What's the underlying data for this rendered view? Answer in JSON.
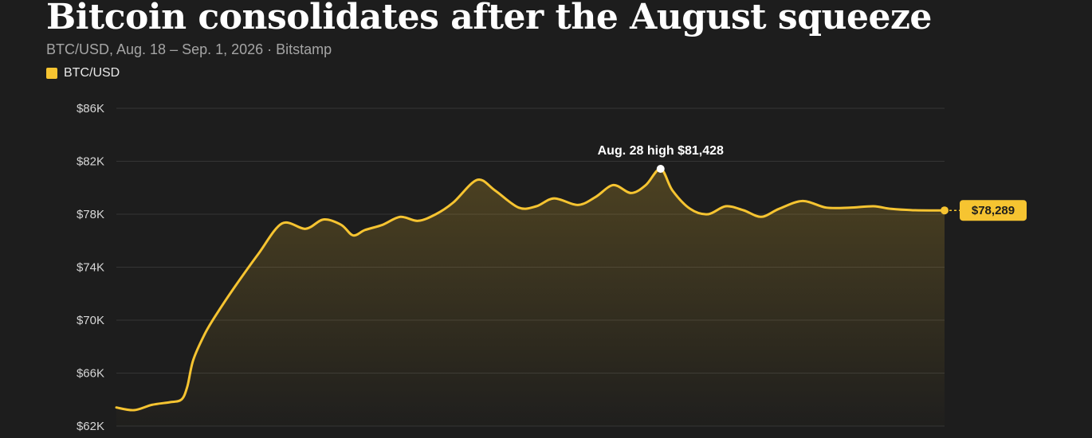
{
  "chart_data": {
    "type": "line",
    "title": "Bitcoin consolidates after the August squeeze",
    "subtitle": "BTC/USD, Aug. 18 – Sep. 1, 2026 · Bitstamp",
    "legend": {
      "position": "top-left",
      "entries": [
        "BTC/USD"
      ]
    },
    "ylim": [
      62000,
      86000
    ],
    "yticks": [
      {
        "value": 86000,
        "label": "$86K"
      },
      {
        "value": 82000,
        "label": "$82K"
      },
      {
        "value": 78000,
        "label": "$78K"
      },
      {
        "value": 74000,
        "label": "$74K"
      },
      {
        "value": 70000,
        "label": "$70K"
      },
      {
        "value": 66000,
        "label": "$66K"
      },
      {
        "value": 62000,
        "label": "$62K"
      }
    ],
    "xlim": [
      0,
      14
    ],
    "grid": true,
    "series": [
      {
        "name": "BTC/USD",
        "color": "#f6c431",
        "x": [
          0,
          0.3,
          0.6,
          0.9,
          1.1,
          1.2,
          1.3,
          1.5,
          1.7,
          2.0,
          2.4,
          2.8,
          3.2,
          3.5,
          3.8,
          4.0,
          4.2,
          4.5,
          4.8,
          5.1,
          5.4,
          5.7,
          6.1,
          6.4,
          6.8,
          7.1,
          7.4,
          7.8,
          8.1,
          8.4,
          8.7,
          8.95,
          9.2,
          9.4,
          9.7,
          10.0,
          10.3,
          10.6,
          10.9,
          11.2,
          11.6,
          12.0,
          12.4,
          12.8,
          13.1,
          13.5,
          14.0
        ],
        "y": [
          63400,
          63200,
          63600,
          63800,
          64000,
          65000,
          67000,
          69000,
          70500,
          72500,
          75000,
          77300,
          76900,
          77600,
          77200,
          76400,
          76800,
          77200,
          77800,
          77500,
          78000,
          78900,
          80600,
          79800,
          78500,
          78600,
          79200,
          78700,
          79300,
          80200,
          79600,
          80200,
          81428,
          79800,
          78400,
          78000,
          78600,
          78300,
          77800,
          78400,
          79000,
          78500,
          78500,
          78600,
          78400,
          78300,
          78289
        ]
      }
    ],
    "annotations": [
      {
        "x": 9.2,
        "y": 81428,
        "text": "Aug. 28 high $81,428"
      }
    ],
    "last_value": {
      "x": 14.0,
      "y": 78289,
      "label": "$78,289"
    }
  },
  "colors": {
    "background": "#1d1d1d",
    "grid": "#353535",
    "line": "#f6c431",
    "badge": "#f6c431"
  }
}
